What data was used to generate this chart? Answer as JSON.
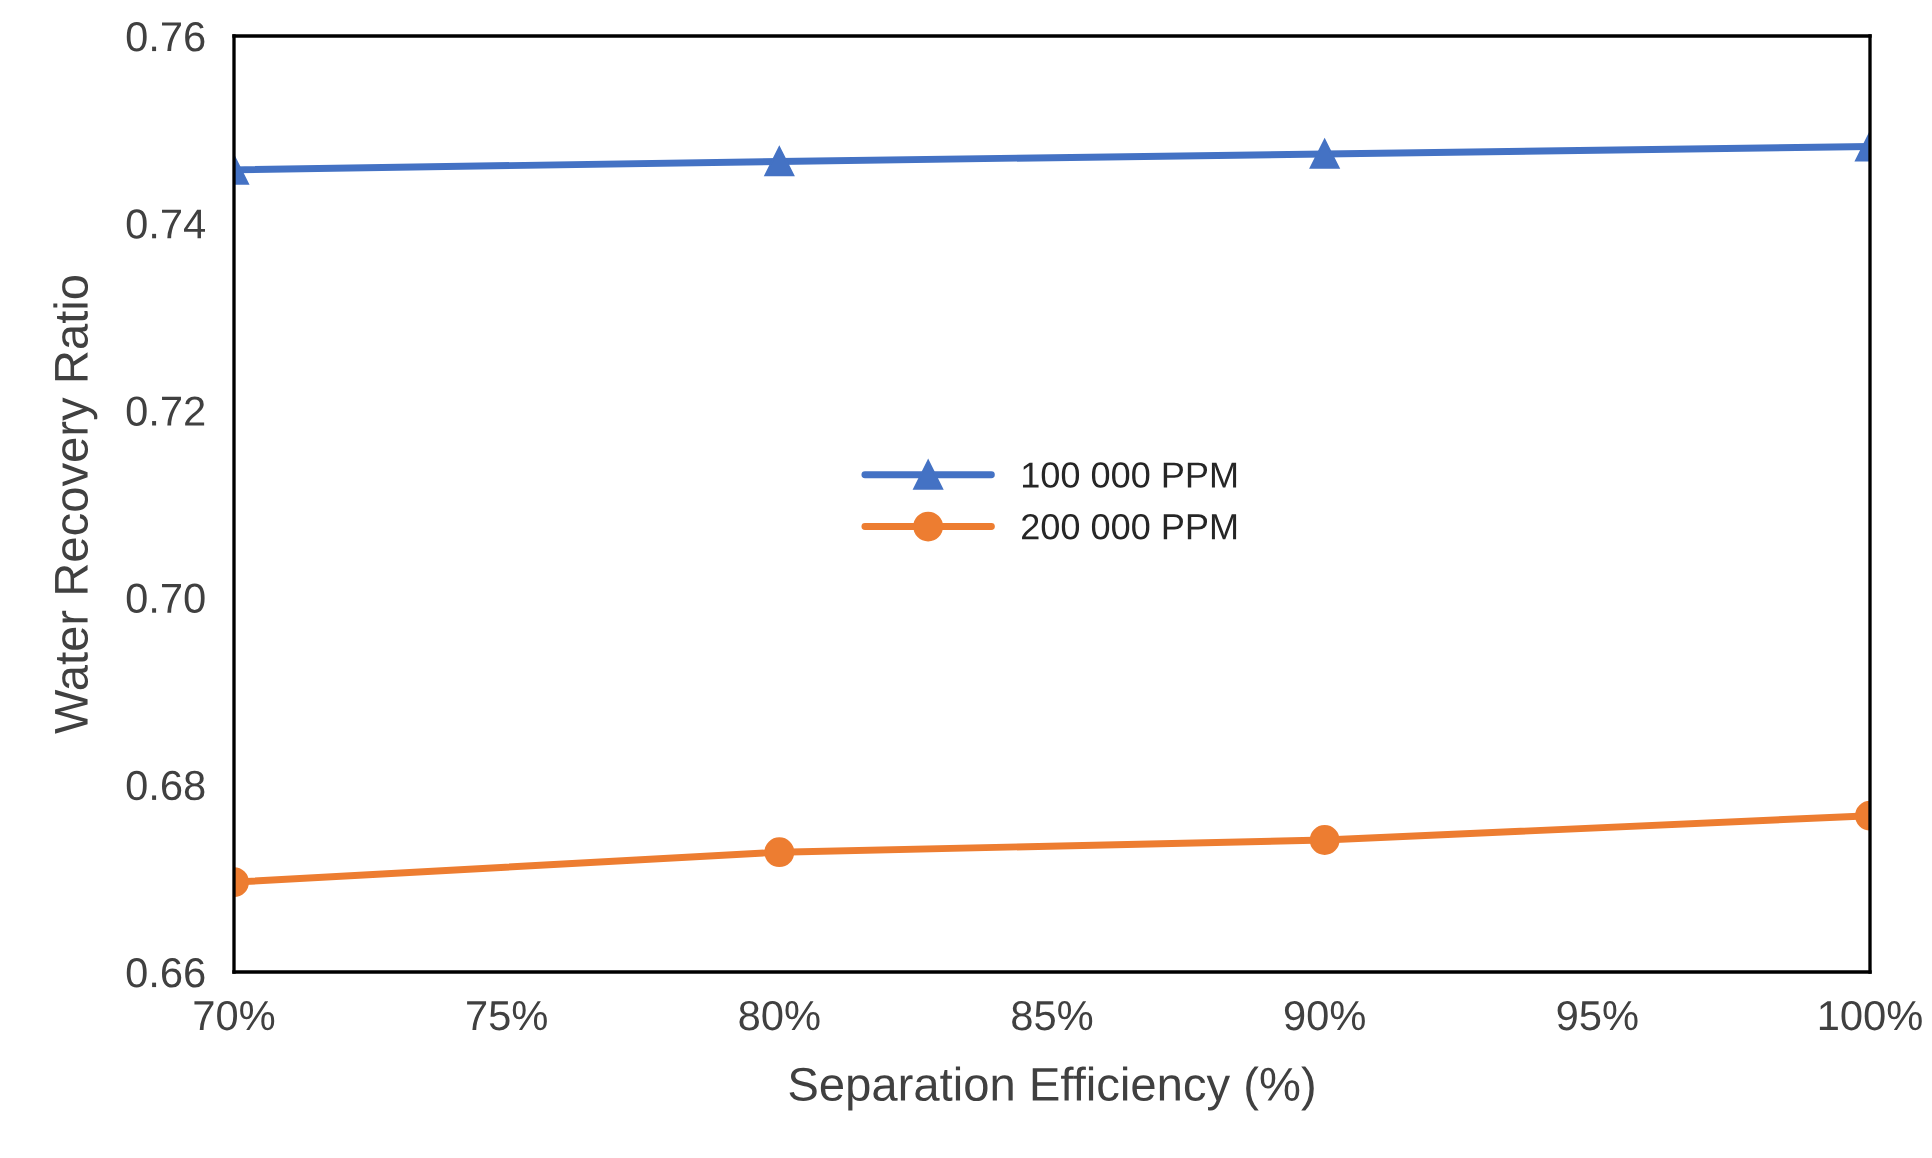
{
  "chart_data": {
    "type": "line",
    "xlabel": "Separation Efficiency (%)",
    "ylabel": "Water Recovery Ratio",
    "x": [
      70,
      80,
      90,
      100
    ],
    "series": [
      {
        "name": "100 000 PPM",
        "color": "#4472c4",
        "values": [
          0.7457,
          0.7466,
          0.7474,
          0.7482
        ],
        "marker": "triangle"
      },
      {
        "name": "200 000 PPM",
        "color": "#ed7d31",
        "values": [
          0.6696,
          0.6728,
          0.6741,
          0.6767
        ],
        "marker": "circle"
      }
    ],
    "xlim": [
      70,
      100
    ],
    "xticks": [
      {
        "value": 70,
        "label": "70%"
      },
      {
        "value": 75,
        "label": "75%"
      },
      {
        "value": 80,
        "label": "80%"
      },
      {
        "value": 85,
        "label": "85%"
      },
      {
        "value": 90,
        "label": "90%"
      },
      {
        "value": 95,
        "label": "95%"
      },
      {
        "value": 100,
        "label": "100%"
      }
    ],
    "ylim": [
      0.66,
      0.76
    ],
    "yticks": [
      {
        "value": 0.66,
        "label": "0.66"
      },
      {
        "value": 0.68,
        "label": "0.68"
      },
      {
        "value": 0.7,
        "label": "0.70"
      },
      {
        "value": 0.72,
        "label": "0.72"
      },
      {
        "value": 0.74,
        "label": "0.74"
      },
      {
        "value": 0.76,
        "label": "0.76"
      }
    ],
    "grid": false,
    "legend": "center",
    "line_style": "solid"
  }
}
